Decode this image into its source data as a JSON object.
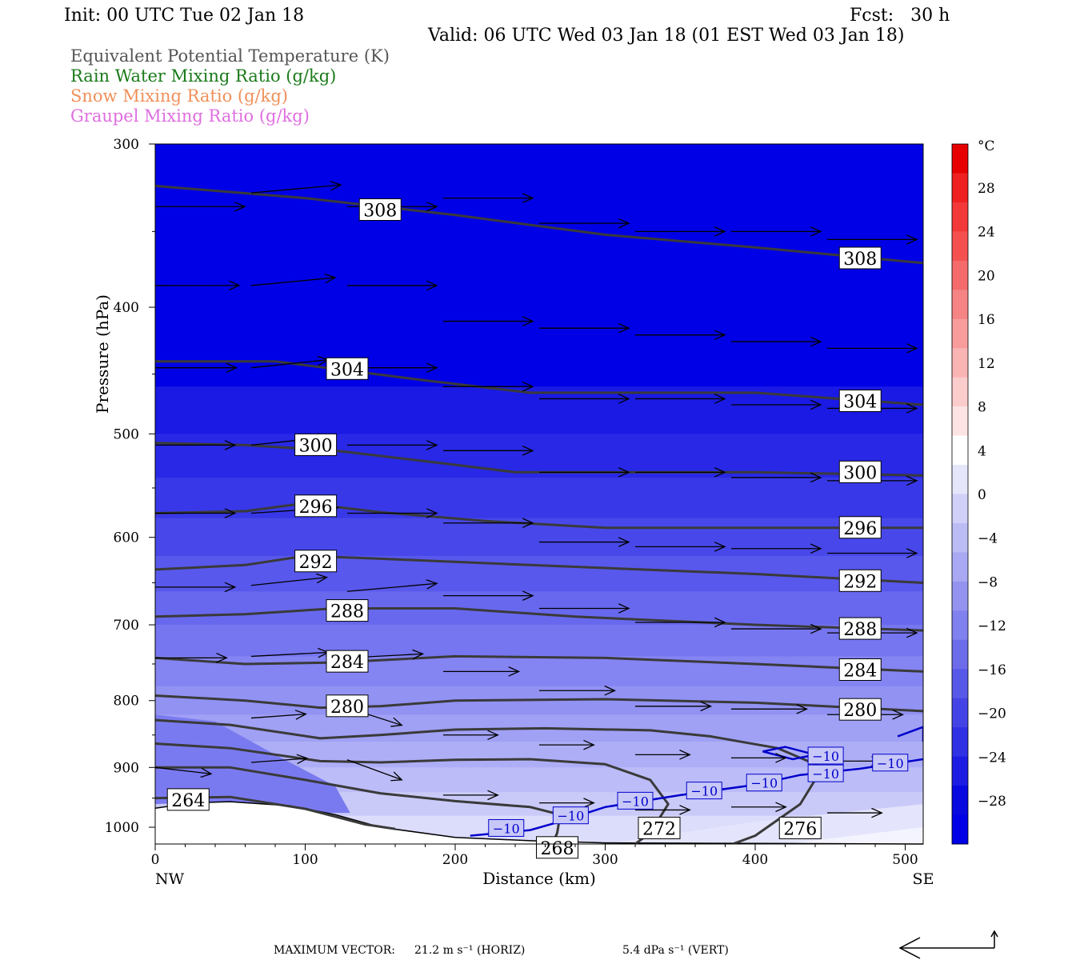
{
  "header": {
    "init": "Init: 00 UTC Tue 02 Jan 18",
    "fcst": "Fcst:   30 h",
    "valid": "Valid: 06 UTC Wed 03 Jan 18 (01 EST Wed 03 Jan 18)"
  },
  "legend": [
    {
      "text": "Equivalent Potential Temperature (K)",
      "color": "#555555"
    },
    {
      "text": "Rain Water Mixing Ratio (g/kg)",
      "color": "#1a7a1a"
    },
    {
      "text": "Snow Mixing Ratio (g/kg)",
      "color": "#f0905a"
    },
    {
      "text": "Graupel Mixing Ratio (g/kg)",
      "color": "#e06ee0"
    }
  ],
  "footer": {
    "max_vector_label": "MAXIMUM VECTOR:",
    "horiz": "21.2 m s⁻¹ (HORIZ)",
    "vert": "5.4 dPa s⁻¹ (VERT)"
  },
  "chart_data": {
    "type": "cross-section",
    "xlabel": "Distance (km)",
    "ylabel": "Pressure (hPa)",
    "xlim": [
      0,
      512
    ],
    "ylim": [
      1030,
      300
    ],
    "x_ticks": [
      0,
      100,
      200,
      300,
      400,
      500
    ],
    "y_ticks": [
      300,
      400,
      500,
      600,
      700,
      800,
      900,
      1000
    ],
    "x_end_labels": {
      "left": "NW",
      "right": "SE"
    },
    "fill_field": "Temperature (°C)",
    "colorbar": {
      "unit": "°C",
      "labels": [
        28,
        24,
        20,
        16,
        12,
        8,
        4,
        0,
        -4,
        -8,
        -12,
        -16,
        -20,
        -24,
        -28
      ],
      "colors": [
        "#e60000",
        "#ee2020",
        "#f23838",
        "#f55050",
        "#f56a6a",
        "#f78484",
        "#f89c9c",
        "#f9b4b4",
        "#fbcccc",
        "#fce4e4",
        "#ffffff",
        "#e6e6fb",
        "#d0d0f8",
        "#bcbcf5",
        "#a8a8f3",
        "#9494f0",
        "#8080ee",
        "#6c6cea",
        "#5858e8",
        "#4444e6",
        "#3030e4",
        "#1c1ce2",
        "#0808e0",
        "#0000e6"
      ]
    },
    "theta_e_contours": [
      {
        "value": 308,
        "points": [
          [
            0,
            323
          ],
          [
            100,
            330
          ],
          [
            200,
            340
          ],
          [
            300,
            352
          ],
          [
            400,
            360
          ],
          [
            512,
            370
          ]
        ],
        "labels": [
          [
            150,
            337
          ],
          [
            470,
            367
          ]
        ]
      },
      {
        "value": 304,
        "points": [
          [
            0,
            440
          ],
          [
            80,
            440
          ],
          [
            180,
            455
          ],
          [
            250,
            465
          ],
          [
            400,
            465
          ],
          [
            512,
            475
          ]
        ],
        "labels": [
          [
            128,
            446
          ],
          [
            470,
            472
          ]
        ]
      },
      {
        "value": 300,
        "points": [
          [
            0,
            508
          ],
          [
            60,
            510
          ],
          [
            120,
            515
          ],
          [
            200,
            528
          ],
          [
            240,
            535
          ],
          [
            400,
            535
          ],
          [
            512,
            538
          ]
        ],
        "labels": [
          [
            107,
            510
          ],
          [
            470,
            535
          ]
        ]
      },
      {
        "value": 296,
        "points": [
          [
            0,
            575
          ],
          [
            60,
            573
          ],
          [
            100,
            565
          ],
          [
            150,
            574
          ],
          [
            220,
            583
          ],
          [
            300,
            590
          ],
          [
            512,
            590
          ]
        ],
        "labels": [
          [
            107,
            568
          ],
          [
            470,
            590
          ]
        ]
      },
      {
        "value": 292,
        "points": [
          [
            0,
            635
          ],
          [
            60,
            630
          ],
          [
            100,
            620
          ],
          [
            150,
            623
          ],
          [
            250,
            630
          ],
          [
            400,
            640
          ],
          [
            512,
            650
          ]
        ],
        "labels": [
          [
            107,
            626
          ],
          [
            470,
            648
          ]
        ]
      },
      {
        "value": 288,
        "points": [
          [
            0,
            690
          ],
          [
            60,
            687
          ],
          [
            120,
            680
          ],
          [
            200,
            680
          ],
          [
            280,
            690
          ],
          [
            400,
            700
          ],
          [
            512,
            707
          ]
        ],
        "labels": [
          [
            128,
            683
          ],
          [
            470,
            705
          ]
        ]
      },
      {
        "value": 284,
        "points": [
          [
            0,
            742
          ],
          [
            60,
            750
          ],
          [
            120,
            748
          ],
          [
            200,
            740
          ],
          [
            300,
            742
          ],
          [
            400,
            750
          ],
          [
            512,
            760
          ]
        ],
        "labels": [
          [
            128,
            747
          ],
          [
            470,
            758
          ]
        ]
      },
      {
        "value": 280,
        "points": [
          [
            0,
            793
          ],
          [
            60,
            800
          ],
          [
            110,
            810
          ],
          [
            150,
            808
          ],
          [
            200,
            800
          ],
          [
            300,
            798
          ],
          [
            400,
            803
          ],
          [
            512,
            815
          ]
        ],
        "labels": [
          [
            128,
            808
          ],
          [
            470,
            813
          ]
        ]
      },
      {
        "value": 276,
        "points": [
          [
            0,
            828
          ],
          [
            50,
            835
          ],
          [
            110,
            855
          ],
          [
            150,
            850
          ],
          [
            200,
            842
          ],
          [
            260,
            840
          ],
          [
            330,
            843
          ],
          [
            370,
            852
          ],
          [
            415,
            870
          ],
          [
            445,
            900
          ],
          [
            430,
            960
          ],
          [
            400,
            1015
          ],
          [
            385,
            1030
          ]
        ],
        "labels": [
          [
            430,
            1002
          ]
        ]
      },
      {
        "value": 272,
        "points": [
          [
            0,
            863
          ],
          [
            50,
            870
          ],
          [
            110,
            890
          ],
          [
            150,
            892
          ],
          [
            200,
            888
          ],
          [
            250,
            887
          ],
          [
            300,
            895
          ],
          [
            330,
            920
          ],
          [
            342,
            960
          ],
          [
            330,
            1010
          ],
          [
            320,
            1030
          ]
        ],
        "labels": [
          [
            336,
            1002
          ]
        ]
      },
      {
        "value": 268,
        "points": [
          [
            0,
            900
          ],
          [
            50,
            900
          ],
          [
            100,
            920
          ],
          [
            150,
            942
          ],
          [
            200,
            955
          ],
          [
            250,
            965
          ],
          [
            270,
            978
          ],
          [
            268,
            1010
          ],
          [
            265,
            1030
          ]
        ],
        "labels": [
          [
            268,
            1037
          ]
        ]
      },
      {
        "value": 264,
        "points": [
          [
            0,
            950
          ],
          [
            50,
            948
          ],
          [
            100,
            968
          ],
          [
            140,
            995
          ],
          [
            160,
            1003
          ]
        ],
        "labels": [
          [
            22,
            953
          ]
        ]
      }
    ],
    "temp_minus10_contour": {
      "points": [
        [
          210,
          1015
        ],
        [
          250,
          1005
        ],
        [
          270,
          990
        ],
        [
          300,
          965
        ],
        [
          350,
          945
        ],
        [
          400,
          928
        ],
        [
          430,
          912
        ],
        [
          470,
          902
        ],
        [
          512,
          887
        ]
      ],
      "labels": [
        [
          234,
          1002
        ],
        [
          277,
          980
        ],
        [
          320,
          955
        ],
        [
          366,
          938
        ],
        [
          406,
          925
        ],
        [
          447,
          910
        ],
        [
          490,
          893
        ],
        [
          447,
          882
        ]
      ],
      "loop": [
        [
          405,
          875
        ],
        [
          420,
          868
        ],
        [
          440,
          880
        ],
        [
          425,
          887
        ]
      ],
      "edge": [
        [
          495,
          852
        ],
        [
          512,
          838
        ],
        [
          512,
          860
        ]
      ],
      "label_text": "−10",
      "color": "#0000cc"
    },
    "terrain": {
      "points": [
        [
          0,
          967
        ],
        [
          25,
          958
        ],
        [
          50,
          956
        ],
        [
          90,
          963
        ],
        [
          120,
          978
        ],
        [
          150,
          1000
        ],
        [
          200,
          1018
        ],
        [
          250,
          1024
        ],
        [
          300,
          1028
        ],
        [
          400,
          1029
        ],
        [
          512,
          1030
        ]
      ]
    },
    "wind_vectors": [
      [
        0,
        335,
        64,
        0
      ],
      [
        0,
        385,
        60,
        -0.2
      ],
      [
        0,
        445,
        58,
        0
      ],
      [
        0,
        510,
        57,
        0
      ],
      [
        0,
        575,
        57,
        0
      ],
      [
        0,
        655,
        57,
        0
      ],
      [
        0,
        742,
        51,
        -0.1
      ],
      [
        0,
        900,
        40,
        8
      ],
      [
        64,
        327,
        64,
        -10
      ],
      [
        64,
        385,
        60,
        -10
      ],
      [
        64,
        445,
        55,
        -10
      ],
      [
        64,
        510,
        55,
        -10
      ],
      [
        64,
        575,
        62,
        -7
      ],
      [
        64,
        653,
        54,
        -10
      ],
      [
        64,
        740,
        55,
        -5
      ],
      [
        64,
        825,
        39,
        -5
      ],
      [
        64,
        892,
        40,
        -5
      ],
      [
        128,
        335,
        64,
        0
      ],
      [
        128,
        385,
        64,
        0
      ],
      [
        128,
        445,
        64,
        0
      ],
      [
        128,
        510,
        64,
        0
      ],
      [
        128,
        575,
        64,
        0
      ],
      [
        128,
        660,
        64,
        -10
      ],
      [
        128,
        742,
        54,
        -5
      ],
      [
        128,
        810,
        39,
        22
      ],
      [
        128,
        888,
        39,
        25
      ],
      [
        192,
        330,
        64,
        0
      ],
      [
        192,
        410,
        64,
        0
      ],
      [
        192,
        460,
        64,
        0
      ],
      [
        192,
        515,
        64,
        0
      ],
      [
        192,
        585,
        64,
        0
      ],
      [
        192,
        665,
        64,
        0
      ],
      [
        192,
        760,
        54,
        0
      ],
      [
        192,
        850,
        39,
        0
      ],
      [
        192,
        945,
        39,
        0
      ],
      [
        256,
        345,
        64,
        0
      ],
      [
        256,
        415,
        64,
        0
      ],
      [
        256,
        470,
        64,
        0
      ],
      [
        256,
        535,
        64,
        0
      ],
      [
        256,
        605,
        64,
        0
      ],
      [
        256,
        680,
        64,
        0
      ],
      [
        256,
        786,
        54,
        0
      ],
      [
        256,
        865,
        39,
        0
      ],
      [
        256,
        958,
        39,
        0
      ],
      [
        320,
        350,
        64,
        0
      ],
      [
        320,
        420,
        64,
        0
      ],
      [
        320,
        470,
        64,
        0
      ],
      [
        320,
        535,
        64,
        0
      ],
      [
        320,
        610,
        64,
        0
      ],
      [
        320,
        697,
        64,
        0
      ],
      [
        320,
        808,
        54,
        0
      ],
      [
        320,
        880,
        39,
        0
      ],
      [
        320,
        970,
        39,
        0
      ],
      [
        384,
        350,
        64,
        0
      ],
      [
        384,
        425,
        64,
        0
      ],
      [
        384,
        475,
        64,
        0
      ],
      [
        384,
        540,
        64,
        0
      ],
      [
        384,
        612,
        64,
        0
      ],
      [
        384,
        705,
        64,
        0
      ],
      [
        384,
        812,
        54,
        0
      ],
      [
        384,
        885,
        39,
        0
      ],
      [
        384,
        965,
        39,
        0
      ],
      [
        448,
        355,
        64,
        0
      ],
      [
        448,
        430,
        64,
        0
      ],
      [
        448,
        478,
        64,
        0
      ],
      [
        448,
        543,
        64,
        0
      ],
      [
        448,
        617,
        64,
        0
      ],
      [
        448,
        710,
        64,
        0
      ],
      [
        448,
        820,
        54,
        0
      ],
      [
        448,
        890,
        39,
        0
      ],
      [
        448,
        975,
        39,
        0
      ],
      [
        512,
        355,
        54,
        0
      ],
      [
        512,
        435,
        54,
        0
      ],
      [
        512,
        480,
        54,
        0
      ],
      [
        512,
        545,
        54,
        0
      ],
      [
        512,
        620,
        54,
        0
      ],
      [
        512,
        712,
        54,
        0
      ],
      [
        512,
        825,
        54,
        0
      ],
      [
        512,
        895,
        39,
        0
      ],
      [
        512,
        980,
        39,
        0
      ]
    ]
  }
}
